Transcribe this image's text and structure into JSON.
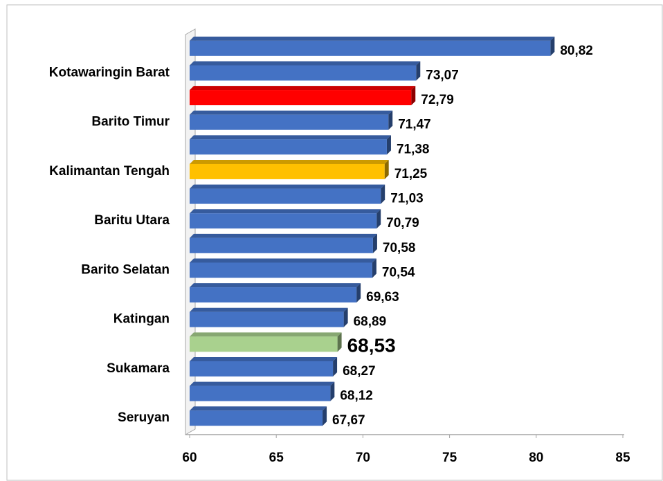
{
  "chart_data": {
    "type": "bar",
    "orientation": "horizontal",
    "categories": [
      null,
      "Kotawaringin Barat",
      null,
      "Barito Timur",
      null,
      "Kalimantan Tengah",
      null,
      "Baritu Utara",
      null,
      "Barito Selatan",
      null,
      "Katingan",
      null,
      "Sukamara",
      null,
      "Seruyan"
    ],
    "values": [
      80.82,
      73.07,
      72.79,
      71.47,
      71.38,
      71.25,
      71.03,
      70.79,
      70.58,
      70.54,
      69.63,
      68.89,
      68.53,
      68.27,
      68.12,
      67.67
    ],
    "value_labels": [
      "80,82",
      "73,07",
      "72,79",
      "71,47",
      "71,38",
      "71,25",
      "71,03",
      "70,79",
      "70,58",
      "70,54",
      "69,63",
      "68,89",
      "68,53",
      "68,27",
      "68,12",
      "67,67"
    ],
    "colors": [
      "#4472c4",
      "#4472c4",
      "#ff0000",
      "#4472c4",
      "#4472c4",
      "#ffc000",
      "#4472c4",
      "#4472c4",
      "#4472c4",
      "#4472c4",
      "#4472c4",
      "#4472c4",
      "#a9d18e",
      "#4472c4",
      "#4472c4",
      "#4472c4"
    ],
    "xlim": [
      60,
      85
    ],
    "xticks": [
      60,
      65,
      70,
      75,
      80,
      85
    ],
    "grid": false
  }
}
